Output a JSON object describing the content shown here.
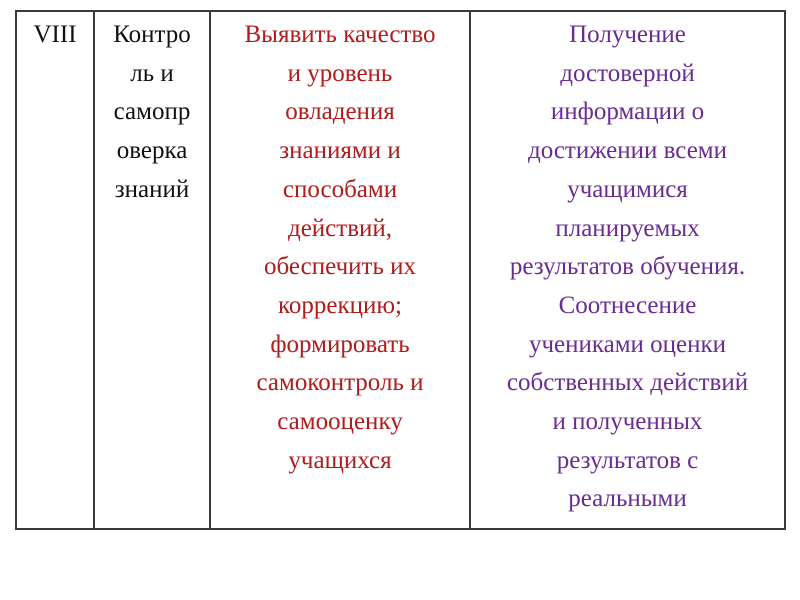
{
  "colors": {
    "goal_text": "#b01c1c",
    "result_text": "#6a2c91",
    "border": "#3a3a3a"
  },
  "table": {
    "rows": [
      {
        "stage_number": "VIII",
        "stage_name": "Контро\nль и\nсамопр\nоверка\nзнаний",
        "goal": "Выявить качество\nи уровень\nовладения\nзнаниями и\nспособами\nдействий,\nобеспечить их\nкоррекцию;\nформировать\nсамоконтроль и\nсамооценку\nучащихся",
        "result": "Получение\nдостоверной\nинформации о\nдостижении всеми\nучащимися\nпланируемых\nрезультатов обучения.\nСоотнесение\nучениками оценки\nсобственных действий\nи полученных\nрезультатов с\nреальными"
      }
    ]
  }
}
